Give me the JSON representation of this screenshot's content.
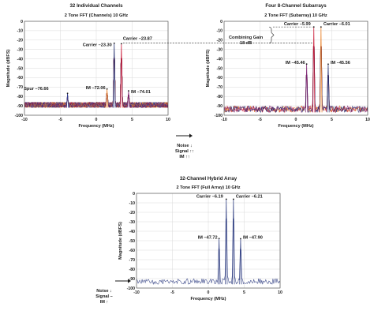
{
  "chart_data": [
    {
      "type": "line",
      "title": "32 Individual Channels",
      "subtitle": "2 Tone FFT (Channels) 10 GHz",
      "xlabel": "Frequency (MHz)",
      "ylabel": "Magnitude (dBFS)",
      "xlim": [
        -10,
        10
      ],
      "ylim": [
        -100,
        0
      ],
      "xticks": [
        "-10",
        "-5",
        "0",
        "5",
        "10"
      ],
      "yticks": [
        "0",
        "-10",
        "-20",
        "-30",
        "-40",
        "-50",
        "-60",
        "-70",
        "-80",
        "-90",
        "-100"
      ],
      "noise_floor_dbfs": [
        -92,
        -86
      ],
      "grid": true,
      "series_note": "32 overlaid channel spectra",
      "series_colors": [
        "#1f2a6b",
        "#c8102e",
        "#e87a1d",
        "#7a1e6e",
        "#2b3a8f",
        "#f2a93b",
        "#8a1538",
        "#4b4b9a"
      ],
      "peaks": [
        {
          "x": 2.5,
          "y": -23.3
        },
        {
          "x": 3.5,
          "y": -23.87
        },
        {
          "x": 1.5,
          "y": -72.06
        },
        {
          "x": 4.5,
          "y": -74.01
        },
        {
          "x": -4.0,
          "y": -76.66
        }
      ],
      "annotations": [
        {
          "text": "Carrier –23.30",
          "x": 2.5,
          "y": -23.3
        },
        {
          "text": "Carrier –23.87",
          "x": 3.5,
          "y": -23.87
        },
        {
          "text": "Spur –76.66",
          "x": -4.0,
          "y": -76.66
        },
        {
          "text": "IM –72.06",
          "x": 1.5,
          "y": -72.06
        },
        {
          "text": "IM –74.01",
          "x": 4.5,
          "y": -74.01
        }
      ]
    },
    {
      "type": "line",
      "title": "Four 8-Channel Subarrays",
      "subtitle": "2 Tone FFT (Subarray) 10 GHz",
      "xlabel": "Frequency (MHz)",
      "ylabel": "Magnitude (dBFS)",
      "xlim": [
        -10,
        10
      ],
      "ylim": [
        -100,
        0
      ],
      "xticks": [
        "-10",
        "-5",
        "0",
        "5",
        "10"
      ],
      "yticks": [
        "0",
        "-10",
        "-20",
        "-30",
        "-40",
        "-50",
        "-60",
        "-70",
        "-80",
        "-90",
        "-100"
      ],
      "noise_floor_dbfs": [
        -97,
        -90
      ],
      "grid": true,
      "series_note": "4 overlaid subarray spectra",
      "series_colors": [
        "#c8102e",
        "#e87a1d",
        "#7a1e6e",
        "#1f2a6b"
      ],
      "peaks": [
        {
          "x": 2.5,
          "y": -5.99
        },
        {
          "x": 3.5,
          "y": -6.01
        },
        {
          "x": 1.5,
          "y": -45.46
        },
        {
          "x": 4.5,
          "y": -45.56
        }
      ],
      "annotations": [
        {
          "text": "Carrier –5.99",
          "x": 2.5,
          "y": -5.99
        },
        {
          "text": "Carrier –6.01",
          "x": 3.5,
          "y": -6.01
        },
        {
          "text": "IM –45.46",
          "x": 1.5,
          "y": -45.46
        },
        {
          "text": "IM –45.56",
          "x": 4.5,
          "y": -45.56
        },
        {
          "text": "Combining Gain",
          "x": -6.0,
          "y": -13
        },
        {
          "text": "18 dB",
          "x": -6.0,
          "y": -18
        }
      ]
    },
    {
      "type": "line",
      "title": "32-Channel Hybrid Array",
      "subtitle": "2 Tone FFT (Full Array) 10 GHz",
      "xlabel": "Frequency (MHz)",
      "ylabel": "Magnitude (dBFS)",
      "xlim": [
        -10,
        10
      ],
      "ylim": [
        -100,
        0
      ],
      "xticks": [
        "-10",
        "-5",
        "0",
        "5",
        "10"
      ],
      "yticks": [
        "0",
        "-10",
        "-20",
        "-30",
        "-40",
        "-50",
        "-60",
        "-70",
        "-80",
        "-90",
        "-100"
      ],
      "noise_floor_dbfs": [
        -96,
        -90
      ],
      "grid": true,
      "series_colors": [
        "#2b3a7f"
      ],
      "peaks": [
        {
          "x": 2.5,
          "y": -6.19
        },
        {
          "x": 3.5,
          "y": -6.21
        },
        {
          "x": 1.5,
          "y": -47.72
        },
        {
          "x": 4.5,
          "y": -47.9
        }
      ],
      "annotations": [
        {
          "text": "Carrier –6.19",
          "x": 2.5,
          "y": -6.19
        },
        {
          "text": "Carrier –6.21",
          "x": 3.5,
          "y": -6.21
        },
        {
          "text": "IM –47.72",
          "x": 1.5,
          "y": -47.72
        },
        {
          "text": "IM –47.90",
          "x": 4.5,
          "y": -47.9
        }
      ]
    }
  ],
  "notes": [
    {
      "lines": [
        "Noise ↓",
        "Signal ↑↑",
        "IM ↑↑"
      ]
    },
    {
      "lines": [
        "Noise ↓",
        "Signal –",
        "IM ↑"
      ]
    }
  ]
}
